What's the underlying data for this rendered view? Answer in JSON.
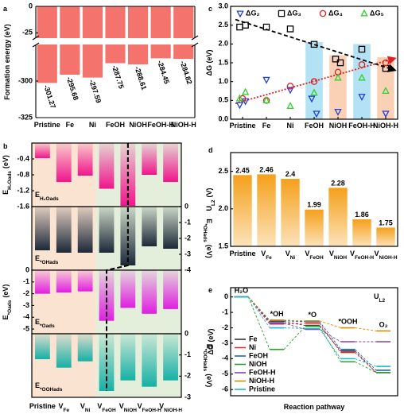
{
  "chart_data": [
    {
      "type": "broken_bar",
      "panel": "a",
      "ylabel": "Formation energy (eV)",
      "categories": [
        "Pristine",
        "Fe",
        "Ni",
        "FeOH",
        "NiOH",
        "FeOH-H",
        "NiOH-H"
      ],
      "values": [
        -301.27,
        -295.68,
        -297.59,
        -287.75,
        -288.61,
        -284.45,
        -284.82
      ],
      "color": "#f4736c",
      "ylim": [
        -325,
        0
      ],
      "break": [
        -30,
        -275
      ],
      "yticks": [
        0,
        -25,
        -300,
        -325
      ]
    },
    {
      "type": "multi_bar",
      "panel": "b",
      "categories": [
        {
          "main": "Pristine"
        },
        {
          "main": "V",
          "sub": "Fe"
        },
        {
          "main": "V",
          "sub": "Ni"
        },
        {
          "main": "V",
          "sub": "FeOH"
        },
        {
          "main": "V",
          "sub": "NiOH"
        },
        {
          "main": "V",
          "sub": "FeOH-H"
        },
        {
          "main": "V",
          "sub": "NiOH-H"
        }
      ],
      "regions": [
        {
          "from": 0,
          "to": 2,
          "color": "#fbe3d2"
        },
        {
          "from": 3,
          "to": 6,
          "color": "#e4efdb"
        }
      ],
      "panels": [
        {
          "label": {
            "main": "E",
            "sub": "H₂Oads"
          },
          "ylabel": {
            "main": "E",
            "sub": "H₂Oads",
            "unit": "(eV)"
          },
          "axis": "left",
          "color": "#f0158c",
          "label_color": "#e5322d",
          "values": [
            -0.38,
            -0.98,
            -0.82,
            -1.15,
            -1.58,
            -0.8,
            -0.98
          ],
          "ylim": [
            -1.6,
            0
          ],
          "yticks": [
            -0.4,
            -0.8,
            -1.2,
            -1.6
          ]
        },
        {
          "label": {
            "main": "E",
            "sub": "*OHads"
          },
          "ylabel": {
            "main": "E",
            "sub": "*OHads",
            "unit": "(eV)"
          },
          "axis": "right",
          "color": "#1c2838",
          "label_color": "#2b4a78",
          "values": [
            -2.75,
            -2.9,
            -2.9,
            -2.9,
            -3.7,
            -2.5,
            -2.65
          ],
          "ylim": [
            -4,
            0
          ],
          "yticks": [
            0,
            -1,
            -2,
            -3,
            -4
          ]
        },
        {
          "label": {
            "main": "E",
            "sub": "*Oads"
          },
          "ylabel": {
            "main": "E",
            "sub": "*Oads",
            "unit": "(eV)"
          },
          "axis": "left",
          "color": "#e01ee0",
          "label_color": "#e01ee0",
          "values": [
            -2.0,
            -1.9,
            -1.8,
            -4.3,
            -3.2,
            -3.7,
            -3.3
          ],
          "ylim": [
            -5.4,
            0
          ],
          "yticks": [
            0,
            -1,
            -2,
            -3,
            -4,
            -5
          ]
        },
        {
          "label": {
            "main": "E",
            "sub": "*OOHads"
          },
          "ylabel": {
            "main": "E",
            "sub": "*OOHads",
            "unit": "(eV)"
          },
          "axis": "right",
          "color": "#16b0a6",
          "label_color": "#138a84",
          "values": [
            -1.2,
            -1.6,
            -1.3,
            -2.7,
            -2.2,
            -2.5,
            -2.2
          ],
          "ylim": [
            -3,
            0
          ],
          "yticks": [
            0,
            -1,
            -2,
            -3
          ]
        }
      ]
    },
    {
      "type": "scatter",
      "panel": "c",
      "ylabel": "ΔG (eV)",
      "xlim": [
        -0.5,
        6.5
      ],
      "xticks": [
        {
          "value": 0,
          "label": "Pristine"
        },
        {
          "value": 1,
          "label": "Fe"
        },
        {
          "value": 2,
          "label": "Ni"
        },
        {
          "value": 3,
          "label": "FeOH"
        },
        {
          "value": 4,
          "label": "NiOH"
        },
        {
          "value": 5,
          "label": "FeOH-H"
        },
        {
          "value": 6,
          "label": "NiOH-H"
        }
      ],
      "ylim": [
        0,
        3
      ],
      "yticks": [
        {
          "value": 0,
          "label": "0.0"
        },
        0.5,
        {
          "value": 1,
          "label": "1.0"
        },
        1.5,
        {
          "value": 2,
          "label": "2.0"
        },
        2.5,
        {
          "value": 3,
          "label": "3.0"
        }
      ],
      "highlights": [
        {
          "x": 3,
          "top": 2.05,
          "color": "#b3e2f5"
        },
        {
          "x": 4,
          "top": 1.7,
          "color": "#fbd1b5"
        },
        {
          "x": 5,
          "top": 2.0,
          "color": "#b3e2f5"
        },
        {
          "x": 6,
          "top": 1.65,
          "color": "#fbd1b5"
        }
      ],
      "series": [
        {
          "name": "ΔG₂",
          "color": "#1f3fd6",
          "marker": "tri_down",
          "x": [
            -0.12,
            0.12,
            1,
            2,
            2.9,
            3.1,
            4,
            5,
            6
          ],
          "values": [
            0.38,
            0.48,
            1.05,
            0.78,
            0.55,
            0.15,
            0.2,
            0.6,
            0.15
          ]
        },
        {
          "name": "ΔG₃",
          "color": "#000000",
          "marker": "square",
          "x": [
            -0.12,
            0.12,
            1,
            2,
            3,
            3.9,
            4.1,
            5,
            6
          ],
          "values": [
            2.45,
            2.5,
            2.45,
            2.4,
            1.99,
            1.6,
            1.5,
            1.86,
            1.35
          ]
        },
        {
          "name": "ΔG₄",
          "color": "#e02020",
          "marker": "circle",
          "x": [
            0,
            1,
            2,
            3,
            4,
            5,
            6
          ],
          "values": [
            0.55,
            0.5,
            0.88,
            1.0,
            1.25,
            1.45,
            1.5
          ]
        },
        {
          "name": "ΔG₅",
          "color": "#2fd02f",
          "marker": "tri_up",
          "x": [
            -0.12,
            0.12,
            1,
            2,
            3,
            4,
            5,
            6
          ],
          "values": [
            0.55,
            0.72,
            0.5,
            0.35,
            0.7,
            1.1,
            1.1,
            0.75
          ]
        }
      ],
      "trend_lines": [
        {
          "color": "#000000",
          "dash": "5,3",
          "x": [
            -0.3,
            6.4
          ],
          "values": [
            2.65,
            1.3
          ]
        },
        {
          "color": "#e02020",
          "dash": "2,2",
          "x": [
            -0.3,
            6.4
          ],
          "values": [
            0.42,
            1.62
          ]
        }
      ]
    },
    {
      "type": "bar",
      "panel": "d",
      "ylabel": {
        "main": "U",
        "sub": "L2",
        "unit": "(V)"
      },
      "categories": [
        {
          "main": "Pristine"
        },
        {
          "main": "V",
          "sub": "Fe"
        },
        {
          "main": "V",
          "sub": "Ni"
        },
        {
          "main": "V",
          "sub": "FeOH"
        },
        {
          "main": "V",
          "sub": "NiOH"
        },
        {
          "main": "V",
          "sub": "FeOH-H"
        },
        {
          "main": "V",
          "sub": "NiOH-H"
        }
      ],
      "values": [
        2.45,
        2.46,
        2.4,
        1.99,
        2.28,
        1.86,
        1.75
      ],
      "color": "#f5a01a",
      "ylim": [
        1.5,
        2.75
      ],
      "yticks": [
        1.5,
        {
          "value": 2,
          "label": "2.0"
        },
        2.5
      ]
    },
    {
      "type": "energy_diagram",
      "panel": "e",
      "title": {
        "main": "U",
        "sub": "L2"
      },
      "xlabel": "Reaction pathway",
      "ylabel": "ΔG (eV)",
      "categories": [
        "H₂O",
        "*OH",
        "*O",
        "*OOH",
        "O₂"
      ],
      "xlim": [
        -0.3,
        4.4
      ],
      "ylim": [
        -6.4,
        0.6
      ],
      "yticks": [
        0,
        -1,
        -2,
        -3,
        -4,
        -5,
        -6
      ],
      "legend": "lower left",
      "series": [
        {
          "name": "Fe",
          "color": "#333333",
          "values": [
            0,
            -1.6,
            -1.85,
            -3.5,
            -4.9
          ]
        },
        {
          "name": "Ni",
          "color": "#e03030",
          "values": [
            0,
            -1.75,
            -1.7,
            -3.6,
            -4.9
          ]
        },
        {
          "name": "FeOH",
          "color": "#2060c0",
          "values": [
            0,
            -1.55,
            -1.6,
            -3.4,
            -4.75
          ]
        },
        {
          "name": "NiOH",
          "color": "#2ca02c",
          "values": [
            0,
            -3.4,
            -1.9,
            -4.2,
            -4.9
          ]
        },
        {
          "name": "FeOH-H",
          "color": "#8a3fb0",
          "values": [
            0,
            -1.7,
            -2.1,
            -2.9,
            -2.9
          ]
        },
        {
          "name": "NiOH-H",
          "color": "#d98c00",
          "values": [
            0,
            -1.5,
            -1.55,
            -2.0,
            -2.2
          ]
        },
        {
          "name": "Pristine",
          "color": "#20b5c8",
          "values": [
            0,
            -2.0,
            -2.05,
            -4.0,
            -4.5
          ]
        }
      ]
    }
  ]
}
